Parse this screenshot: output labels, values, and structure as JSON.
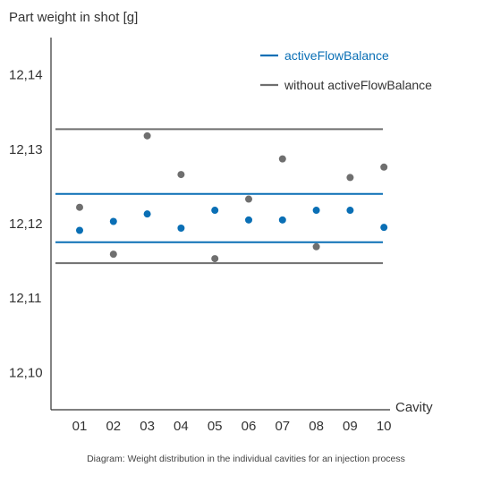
{
  "chart_data": {
    "type": "scatter",
    "ylabel": "Part weight in shot [g]",
    "xlabel": "Cavity",
    "caption": "Diagram: Weight distribution in the individual cavities for an injection process",
    "categories": [
      "01",
      "02",
      "03",
      "04",
      "05",
      "06",
      "07",
      "08",
      "09",
      "10"
    ],
    "ylim": [
      12.095,
      12.145
    ],
    "yticks": [
      12.1,
      12.11,
      12.12,
      12.13,
      12.14
    ],
    "ytick_labels": [
      "12,10",
      "12,11",
      "12,12",
      "12,13",
      "12,14"
    ],
    "grid": false,
    "legend_position": "top-right",
    "series": [
      {
        "name": "activeFlowBalance",
        "color": "#0a6fb5",
        "values": [
          12.1191,
          12.1203,
          12.1213,
          12.1194,
          12.1218,
          12.1205,
          12.1205,
          12.1218,
          12.1218,
          12.1195
        ],
        "band": [
          12.1175,
          12.124
        ]
      },
      {
        "name": "without activeFlowBalance",
        "color": "#6f6f6f",
        "values": [
          12.1222,
          12.1159,
          12.1318,
          12.1266,
          12.1153,
          12.1233,
          12.1287,
          12.1169,
          12.1262,
          12.1276
        ],
        "band": [
          12.1147,
          12.1327
        ]
      }
    ]
  }
}
